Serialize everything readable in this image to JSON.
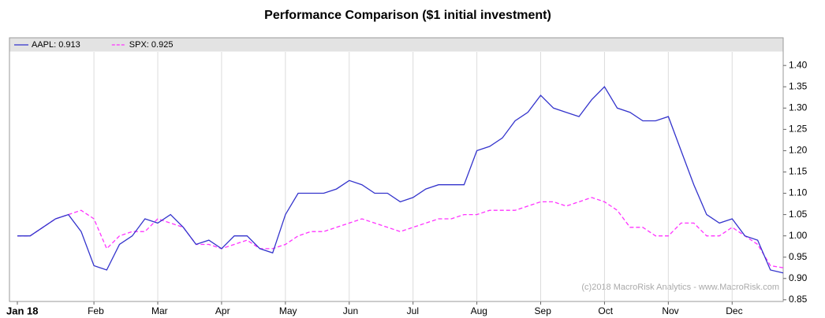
{
  "chart_data": {
    "type": "line",
    "title": "Performance Comparison ($1 initial investment)",
    "watermark": "(c)2018 MacroRisk Analytics - www.MacroRisk.com",
    "categories": [
      "Jan 18",
      null,
      null,
      null,
      null,
      null,
      "Feb",
      null,
      null,
      null,
      null,
      "Mar",
      null,
      null,
      null,
      null,
      "Apr",
      null,
      null,
      null,
      null,
      "May",
      null,
      null,
      null,
      null,
      "Jun",
      null,
      null,
      null,
      null,
      "Jul",
      null,
      null,
      null,
      null,
      "Aug",
      null,
      null,
      null,
      null,
      "Sep",
      null,
      null,
      null,
      null,
      "Oct",
      null,
      null,
      null,
      null,
      "Nov",
      null,
      null,
      null,
      null,
      "Dec",
      null,
      null,
      null,
      null
    ],
    "series": [
      {
        "name": "AAPL: 0.913",
        "color": "#3333cc",
        "dashed": false,
        "values": [
          1.0,
          1.0,
          1.02,
          1.04,
          1.05,
          1.01,
          0.93,
          0.92,
          0.98,
          1.0,
          1.04,
          1.03,
          1.05,
          1.02,
          0.98,
          0.99,
          0.97,
          1.0,
          1.0,
          0.97,
          0.96,
          1.05,
          1.1,
          1.1,
          1.1,
          1.11,
          1.13,
          1.12,
          1.1,
          1.1,
          1.08,
          1.09,
          1.11,
          1.12,
          1.12,
          1.12,
          1.2,
          1.21,
          1.23,
          1.27,
          1.29,
          1.33,
          1.3,
          1.29,
          1.28,
          1.32,
          1.35,
          1.3,
          1.29,
          1.27,
          1.27,
          1.28,
          1.2,
          1.12,
          1.05,
          1.03,
          1.04,
          1.0,
          0.99,
          0.92,
          0.913
        ]
      },
      {
        "name": "SPX: 0.925",
        "color": "#ff33ff",
        "dashed": true,
        "values": [
          1.0,
          1.0,
          1.02,
          1.04,
          1.05,
          1.06,
          1.04,
          0.97,
          1.0,
          1.01,
          1.01,
          1.04,
          1.03,
          1.02,
          0.98,
          0.98,
          0.97,
          0.98,
          0.99,
          0.97,
          0.97,
          0.98,
          1.0,
          1.01,
          1.01,
          1.02,
          1.03,
          1.04,
          1.03,
          1.02,
          1.01,
          1.02,
          1.03,
          1.04,
          1.04,
          1.05,
          1.05,
          1.06,
          1.06,
          1.06,
          1.07,
          1.08,
          1.08,
          1.07,
          1.08,
          1.09,
          1.08,
          1.06,
          1.02,
          1.02,
          1.0,
          1.0,
          1.03,
          1.03,
          1.0,
          1.0,
          1.02,
          1.0,
          0.98,
          0.93,
          0.925
        ]
      }
    ],
    "ylim": [
      0.846,
      1.465
    ],
    "yticks": [
      0.85,
      {
        "value": 0.9,
        "label": "0.90"
      },
      0.95,
      {
        "value": 1.0,
        "label": "1.00"
      },
      1.05,
      {
        "value": 1.1,
        "label": "1.10"
      },
      1.15,
      {
        "value": 1.2,
        "label": "1.20"
      },
      1.25,
      {
        "value": 1.3,
        "label": "1.30"
      },
      1.35,
      {
        "value": 1.4,
        "label": "1.40"
      }
    ],
    "grid": true
  }
}
